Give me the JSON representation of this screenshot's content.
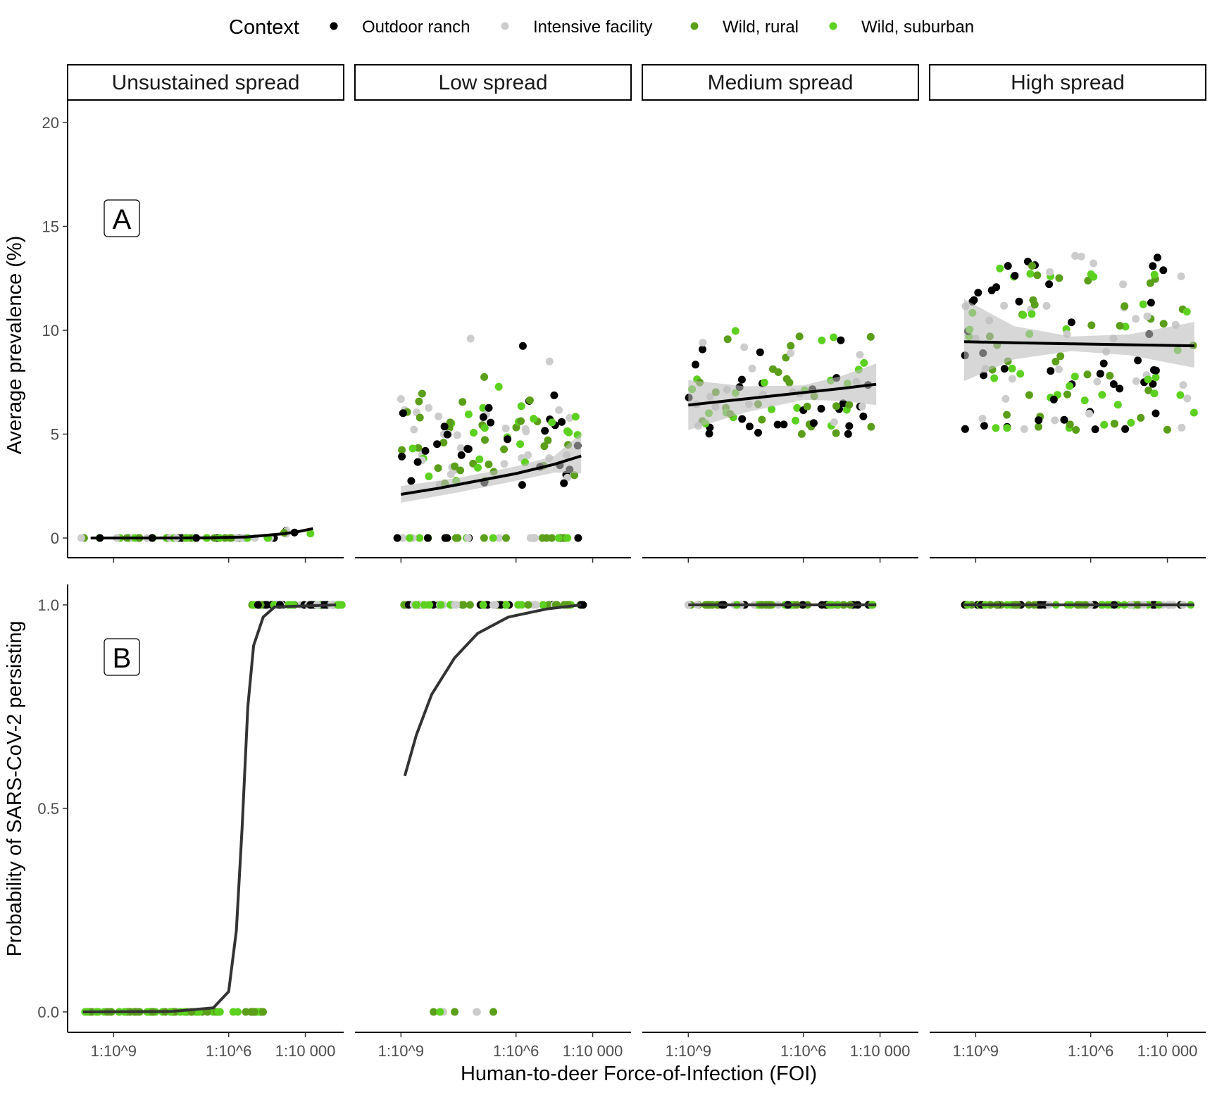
{
  "legend": {
    "title": "Context",
    "entries": [
      {
        "label": "Outdoor ranch",
        "color": "#000000"
      },
      {
        "label": "Intensive facility",
        "color": "#cccccc"
      },
      {
        "label": "Wild, rural",
        "color": "#5a9e1a"
      },
      {
        "label": "Wild, suburban",
        "color": "#5cd11f"
      }
    ]
  },
  "xlabel": "Human-to-deer Force-of-Infection (FOI)",
  "panel_tags": [
    "A",
    "B"
  ],
  "chart_data": [
    {
      "type": "scatter",
      "panel": "A",
      "ylabel": "Average prevalence (%)",
      "ylim": [
        -1,
        21
      ],
      "yticks": [
        0,
        5,
        10,
        15,
        20
      ],
      "ytick_labels": [
        "0",
        "5",
        "10",
        "15",
        "20"
      ],
      "x_scale": "log10",
      "xticks_log10": [
        -9,
        -6,
        -4
      ],
      "xtick_labels": [
        "1:10^9",
        "1:10^6",
        "1:10 000"
      ],
      "facets": [
        {
          "label": "Unsustained spread",
          "xlim_log10": [
            -10.2,
            -3
          ],
          "fit": [
            [
              -9.6,
              0.0
            ],
            [
              -8,
              0.0
            ],
            [
              -6.5,
              0.01
            ],
            [
              -5.5,
              0.05
            ],
            [
              -4.6,
              0.2
            ],
            [
              -4.2,
              0.3
            ],
            [
              -3.8,
              0.45
            ]
          ],
          "band": []
        },
        {
          "label": "Low spread",
          "xlim_log10": [
            -10.2,
            -3
          ],
          "fit": [
            [
              -9.0,
              2.1
            ],
            [
              -8,
              2.4
            ],
            [
              -7,
              2.75
            ],
            [
              -6,
              3.1
            ],
            [
              -5,
              3.55
            ],
            [
              -4.3,
              3.95
            ]
          ],
          "band": [
            [
              -9.0,
              1.7,
              2.5
            ],
            [
              -7.5,
              2.2,
              2.9
            ],
            [
              -6,
              2.75,
              3.45
            ],
            [
              -5,
              3.15,
              3.95
            ],
            [
              -4.3,
              3.1,
              5.05
            ]
          ]
        },
        {
          "label": "Medium spread",
          "xlim_log10": [
            -10.2,
            -3
          ],
          "fit": [
            [
              -9.0,
              6.4
            ],
            [
              -7.5,
              6.7
            ],
            [
              -6,
              7.0
            ],
            [
              -5,
              7.2
            ],
            [
              -4.1,
              7.4
            ]
          ],
          "band": [
            [
              -9.0,
              5.2,
              7.6
            ],
            [
              -7.5,
              6.05,
              7.3
            ],
            [
              -6,
              6.65,
              7.35
            ],
            [
              -5,
              6.6,
              7.8
            ],
            [
              -4.1,
              6.4,
              8.4
            ]
          ]
        },
        {
          "label": "High spread",
          "xlim_log10": [
            -10.2,
            -3
          ],
          "fit": [
            [
              -9.3,
              9.45
            ],
            [
              -8,
              9.4
            ],
            [
              -6.5,
              9.35
            ],
            [
              -5,
              9.3
            ],
            [
              -3.3,
              9.25
            ]
          ],
          "band": [
            [
              -9.3,
              7.55,
              11.5
            ],
            [
              -8,
              8.6,
              10.2
            ],
            [
              -6.5,
              9.0,
              9.7
            ],
            [
              -5,
              8.8,
              9.8
            ],
            [
              -3.3,
              8.2,
              10.4
            ]
          ]
        }
      ]
    },
    {
      "type": "scatter",
      "panel": "B",
      "ylabel": "Probability of SARS-CoV-2 persisting",
      "ylim": [
        -0.05,
        1.05
      ],
      "yticks": [
        0,
        0.5,
        1.0
      ],
      "ytick_labels": [
        "0.0",
        "0.5",
        "1.0"
      ],
      "x_scale": "log10",
      "xticks_log10": [
        -9,
        -6,
        -4
      ],
      "xtick_labels": [
        "1:10^9",
        "1:10^6",
        "1:10 000"
      ],
      "facets": [
        {
          "label": "Unsustained spread",
          "fit": [
            [
              -9.8,
              0.0
            ],
            [
              -7.5,
              0.001
            ],
            [
              -6.4,
              0.01
            ],
            [
              -6.0,
              0.05
            ],
            [
              -5.8,
              0.2
            ],
            [
              -5.65,
              0.45
            ],
            [
              -5.5,
              0.75
            ],
            [
              -5.35,
              0.9
            ],
            [
              -5.1,
              0.97
            ],
            [
              -4.8,
              0.995
            ],
            [
              -3.2,
              1.0
            ]
          ]
        },
        {
          "label": "Low spread",
          "fit": [
            [
              -8.9,
              0.58
            ],
            [
              -8.6,
              0.68
            ],
            [
              -8.2,
              0.78
            ],
            [
              -7.6,
              0.87
            ],
            [
              -7.0,
              0.93
            ],
            [
              -6.2,
              0.97
            ],
            [
              -5.2,
              0.99
            ],
            [
              -4.3,
              1.0
            ]
          ]
        },
        {
          "label": "Medium spread",
          "fit": [
            [
              -9.0,
              1.0
            ],
            [
              -4.1,
              1.0
            ]
          ]
        },
        {
          "label": "High spread",
          "fit": [
            [
              -9.3,
              1.0
            ],
            [
              -3.3,
              1.0
            ]
          ]
        }
      ]
    }
  ]
}
